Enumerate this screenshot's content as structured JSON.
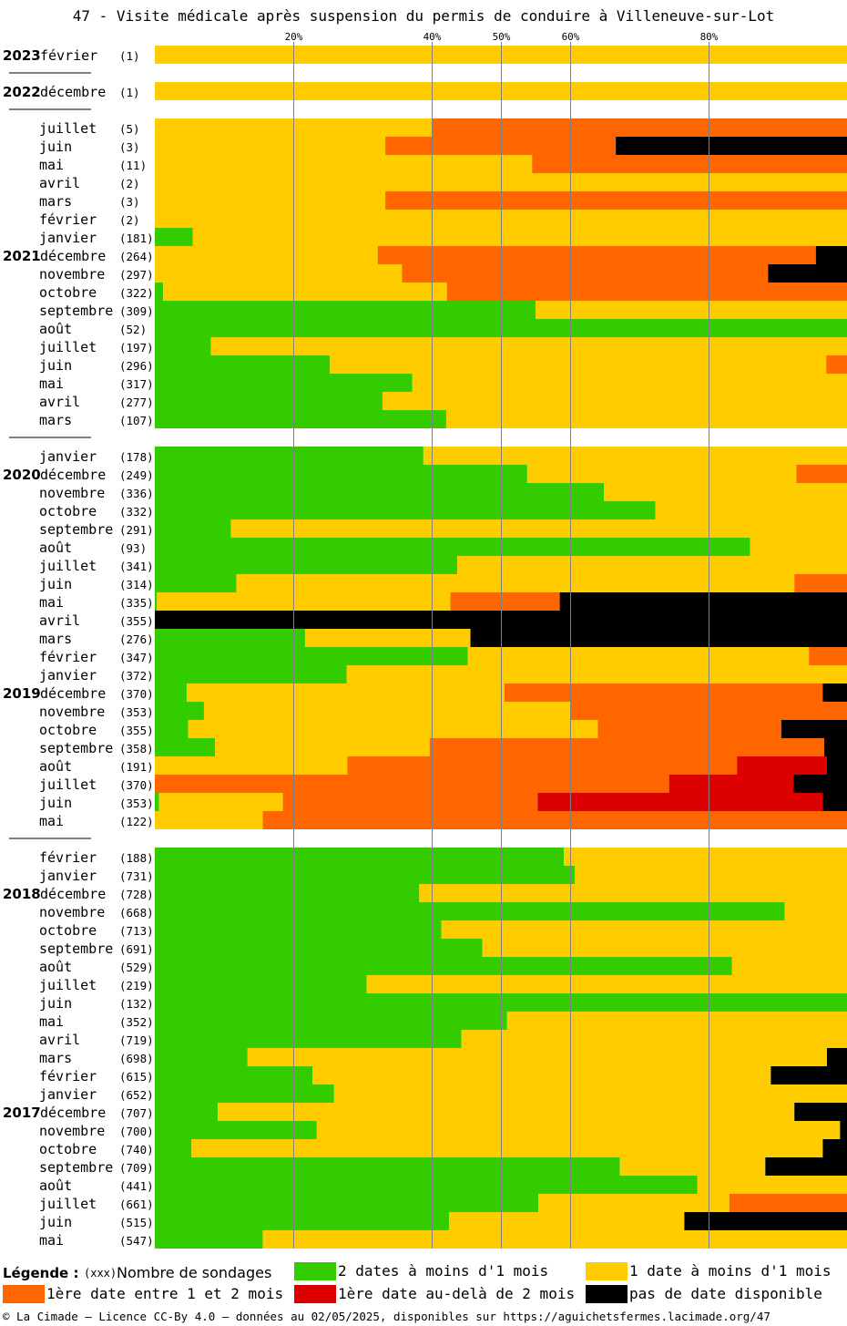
{
  "title": "47 - Visite médicale après suspension du permis de conduire à Villeneuve-sur-Lot",
  "colors": {
    "green": "#33cc00",
    "yellow": "#ffcc00",
    "orange": "#ff6600",
    "red": "#dd0000",
    "black": "#000000",
    "gridline": "#808080"
  },
  "legend": {
    "heading": "Légende :",
    "count_note": "(xxx)",
    "count_label": "Nombre de sondages",
    "items": [
      {
        "key": "green",
        "label": "2 dates à moins d'1 mois"
      },
      {
        "key": "yellow",
        "label": "1 date à moins d'1 mois"
      },
      {
        "key": "orange",
        "label": "1ère date entre 1 et 2 mois"
      },
      {
        "key": "red",
        "label": "1ère date au-delà de 2 mois"
      },
      {
        "key": "black",
        "label": "pas de date disponible"
      }
    ]
  },
  "footer": "© La Cimade — Licence CC-By 4.0 — données au 02/05/2025, disponibles sur https://aguichetsfermes.lacimade.org/47",
  "chart_data": {
    "type": "bar",
    "orientation": "horizontal",
    "stacked": "100%",
    "x_ticks": [
      20,
      40,
      50,
      60,
      80
    ],
    "x_tick_labels": [
      "20%",
      "40%",
      "50%",
      "60%",
      "80%"
    ],
    "xlim": [
      0,
      100
    ],
    "series_order": [
      "green",
      "yellow",
      "orange",
      "red",
      "black"
    ],
    "groups": [
      {
        "rows": [
          {
            "year": "2023",
            "month": "février",
            "count": "(1)",
            "green": 0,
            "yellow": 100,
            "orange": 0,
            "red": 0,
            "black": 0
          }
        ]
      },
      {
        "rows": [
          {
            "year": "2022",
            "month": "décembre",
            "count": "(1)",
            "green": 0,
            "yellow": 100,
            "orange": 0,
            "red": 0,
            "black": 0
          }
        ]
      },
      {
        "rows": [
          {
            "year": "",
            "month": "juillet",
            "count": "(5)",
            "green": 0,
            "yellow": 40,
            "orange": 60,
            "red": 0,
            "black": 0
          },
          {
            "year": "",
            "month": "juin",
            "count": "(3)",
            "green": 0,
            "yellow": 33.3,
            "orange": 33.3,
            "red": 0,
            "black": 33.4
          },
          {
            "year": "",
            "month": "mai",
            "count": "(11)",
            "green": 0,
            "yellow": 54.5,
            "orange": 45.5,
            "red": 0,
            "black": 0
          },
          {
            "year": "",
            "month": "avril",
            "count": "(2)",
            "green": 0,
            "yellow": 100,
            "orange": 0,
            "red": 0,
            "black": 0
          },
          {
            "year": "",
            "month": "mars",
            "count": "(3)",
            "green": 0,
            "yellow": 33.3,
            "orange": 66.7,
            "red": 0,
            "black": 0
          },
          {
            "year": "",
            "month": "février",
            "count": "(2)",
            "green": 0,
            "yellow": 100,
            "orange": 0,
            "red": 0,
            "black": 0
          },
          {
            "year": "",
            "month": "janvier",
            "count": "(181)",
            "green": 5.5,
            "yellow": 94.5,
            "orange": 0,
            "red": 0,
            "black": 0
          },
          {
            "year": "2021",
            "month": "décembre",
            "count": "(264)",
            "green": 0,
            "yellow": 32.2,
            "orange": 63.3,
            "red": 0,
            "black": 4.5
          },
          {
            "year": "",
            "month": "novembre",
            "count": "(297)",
            "green": 0,
            "yellow": 35.7,
            "orange": 52.9,
            "red": 0,
            "black": 11.4
          },
          {
            "year": "",
            "month": "octobre",
            "count": "(322)",
            "green": 1.2,
            "yellow": 41,
            "orange": 57.8,
            "red": 0,
            "black": 0
          },
          {
            "year": "",
            "month": "septembre",
            "count": "(309)",
            "green": 55,
            "yellow": 45,
            "orange": 0,
            "red": 0,
            "black": 0
          },
          {
            "year": "",
            "month": "août",
            "count": "(52)",
            "green": 100,
            "yellow": 0,
            "orange": 0,
            "red": 0,
            "black": 0
          },
          {
            "year": "",
            "month": "juillet",
            "count": "(197)",
            "green": 8.1,
            "yellow": 91.9,
            "orange": 0,
            "red": 0,
            "black": 0
          },
          {
            "year": "",
            "month": "juin",
            "count": "(296)",
            "green": 25.3,
            "yellow": 71.7,
            "orange": 3,
            "red": 0,
            "black": 0
          },
          {
            "year": "",
            "month": "mai",
            "count": "(317)",
            "green": 37.2,
            "yellow": 62.8,
            "orange": 0,
            "red": 0,
            "black": 0
          },
          {
            "year": "",
            "month": "avril",
            "count": "(277)",
            "green": 32.9,
            "yellow": 67.1,
            "orange": 0,
            "red": 0,
            "black": 0
          },
          {
            "year": "",
            "month": "mars",
            "count": "(107)",
            "green": 42.1,
            "yellow": 57.9,
            "orange": 0,
            "red": 0,
            "black": 0
          }
        ]
      },
      {
        "rows": [
          {
            "year": "",
            "month": "janvier",
            "count": "(178)",
            "green": 38.8,
            "yellow": 61.2,
            "orange": 0,
            "red": 0,
            "black": 0
          },
          {
            "year": "2020",
            "month": "décembre",
            "count": "(249)",
            "green": 53.8,
            "yellow": 38.9,
            "orange": 7.3,
            "red": 0,
            "black": 0
          },
          {
            "year": "",
            "month": "novembre",
            "count": "(336)",
            "green": 64.9,
            "yellow": 35.1,
            "orange": 0,
            "red": 0,
            "black": 0
          },
          {
            "year": "",
            "month": "octobre",
            "count": "(332)",
            "green": 72.3,
            "yellow": 27.7,
            "orange": 0,
            "red": 0,
            "black": 0
          },
          {
            "year": "",
            "month": "septembre",
            "count": "(291)",
            "green": 11,
            "yellow": 89,
            "orange": 0,
            "red": 0,
            "black": 0
          },
          {
            "year": "",
            "month": "août",
            "count": "(93)",
            "green": 86,
            "yellow": 14,
            "orange": 0,
            "red": 0,
            "black": 0
          },
          {
            "year": "",
            "month": "juillet",
            "count": "(341)",
            "green": 43.7,
            "yellow": 56.3,
            "orange": 0,
            "red": 0,
            "black": 0
          },
          {
            "year": "",
            "month": "juin",
            "count": "(314)",
            "green": 11.8,
            "yellow": 80.6,
            "orange": 7.6,
            "red": 0,
            "black": 0
          },
          {
            "year": "",
            "month": "mai",
            "count": "(335)",
            "green": 0.3,
            "yellow": 42.4,
            "orange": 15.8,
            "red": 0,
            "black": 41.5
          },
          {
            "year": "",
            "month": "avril",
            "count": "(355)",
            "green": 0,
            "yellow": 0,
            "orange": 0,
            "red": 0,
            "black": 100
          },
          {
            "year": "",
            "month": "mars",
            "count": "(276)",
            "green": 21.7,
            "yellow": 23.9,
            "orange": 0,
            "red": 0,
            "black": 54.4
          },
          {
            "year": "",
            "month": "février",
            "count": "(347)",
            "green": 45.2,
            "yellow": 49.3,
            "orange": 5.5,
            "red": 0,
            "black": 0
          },
          {
            "year": "",
            "month": "janvier",
            "count": "(372)",
            "green": 27.7,
            "yellow": 72.3,
            "orange": 0,
            "red": 0,
            "black": 0
          },
          {
            "year": "2019",
            "month": "décembre",
            "count": "(370)",
            "green": 4.6,
            "yellow": 45.9,
            "orange": 46,
            "red": 0,
            "black": 3.5
          },
          {
            "year": "",
            "month": "novembre",
            "count": "(353)",
            "green": 7.1,
            "yellow": 52.9,
            "orange": 40,
            "red": 0,
            "black": 0
          },
          {
            "year": "",
            "month": "octobre",
            "count": "(355)",
            "green": 4.8,
            "yellow": 59.2,
            "orange": 26.5,
            "red": 0,
            "black": 9.5
          },
          {
            "year": "",
            "month": "septembre",
            "count": "(358)",
            "green": 8.7,
            "yellow": 31,
            "orange": 57,
            "red": 0,
            "black": 3.3
          },
          {
            "year": "",
            "month": "août",
            "count": "(191)",
            "green": 0,
            "yellow": 27.8,
            "orange": 56.3,
            "red": 13,
            "black": 2.9
          },
          {
            "year": "",
            "month": "juillet",
            "count": "(370)",
            "green": 0,
            "yellow": 0,
            "orange": 74.3,
            "red": 18,
            "black": 7.7
          },
          {
            "year": "",
            "month": "juin",
            "count": "(353)",
            "green": 0.6,
            "yellow": 17.9,
            "orange": 36.8,
            "red": 41.2,
            "black": 3.5
          },
          {
            "year": "",
            "month": "mai",
            "count": "(122)",
            "green": 0,
            "yellow": 15.6,
            "orange": 84.4,
            "red": 0,
            "black": 0
          }
        ]
      },
      {
        "rows": [
          {
            "year": "",
            "month": "février",
            "count": "(188)",
            "green": 59.1,
            "yellow": 40.9,
            "orange": 0,
            "red": 0,
            "black": 0
          },
          {
            "year": "",
            "month": "janvier",
            "count": "(731)",
            "green": 60.7,
            "yellow": 39.3,
            "orange": 0,
            "red": 0,
            "black": 0
          },
          {
            "year": "2018",
            "month": "décembre",
            "count": "(728)",
            "green": 38.2,
            "yellow": 61.8,
            "orange": 0,
            "red": 0,
            "black": 0
          },
          {
            "year": "",
            "month": "novembre",
            "count": "(668)",
            "green": 91,
            "yellow": 9,
            "orange": 0,
            "red": 0,
            "black": 0
          },
          {
            "year": "",
            "month": "octobre",
            "count": "(713)",
            "green": 41.4,
            "yellow": 58.6,
            "orange": 0,
            "red": 0,
            "black": 0
          },
          {
            "year": "",
            "month": "septembre",
            "count": "(691)",
            "green": 47.3,
            "yellow": 52.7,
            "orange": 0,
            "red": 0,
            "black": 0
          },
          {
            "year": "",
            "month": "août",
            "count": "(529)",
            "green": 83.4,
            "yellow": 16.6,
            "orange": 0,
            "red": 0,
            "black": 0
          },
          {
            "year": "",
            "month": "juillet",
            "count": "(219)",
            "green": 30.6,
            "yellow": 69.4,
            "orange": 0,
            "red": 0,
            "black": 0
          },
          {
            "year": "",
            "month": "juin",
            "count": "(132)",
            "green": 100,
            "yellow": 0,
            "orange": 0,
            "red": 0,
            "black": 0
          },
          {
            "year": "",
            "month": "mai",
            "count": "(352)",
            "green": 50.9,
            "yellow": 49.1,
            "orange": 0,
            "red": 0,
            "black": 0
          },
          {
            "year": "",
            "month": "avril",
            "count": "(719)",
            "green": 44.3,
            "yellow": 55.7,
            "orange": 0,
            "red": 0,
            "black": 0
          },
          {
            "year": "",
            "month": "mars",
            "count": "(698)",
            "green": 13.4,
            "yellow": 83.7,
            "orange": 0,
            "red": 0,
            "black": 2.9
          },
          {
            "year": "",
            "month": "février",
            "count": "(615)",
            "green": 22.8,
            "yellow": 66.2,
            "orange": 0,
            "red": 0,
            "black": 11
          },
          {
            "year": "",
            "month": "janvier",
            "count": "(652)",
            "green": 25.9,
            "yellow": 74.1,
            "orange": 0,
            "red": 0,
            "black": 0
          },
          {
            "year": "2017",
            "month": "décembre",
            "count": "(707)",
            "green": 9.1,
            "yellow": 83.3,
            "orange": 0,
            "red": 0,
            "black": 7.6
          },
          {
            "year": "",
            "month": "novembre",
            "count": "(700)",
            "green": 23.4,
            "yellow": 75.6,
            "orange": 0,
            "red": 0,
            "black": 1
          },
          {
            "year": "",
            "month": "octobre",
            "count": "(740)",
            "green": 5.3,
            "yellow": 91.2,
            "orange": 0,
            "red": 0,
            "black": 3.5
          },
          {
            "year": "",
            "month": "septembre",
            "count": "(709)",
            "green": 67.2,
            "yellow": 21,
            "orange": 0,
            "red": 0,
            "black": 11.8
          },
          {
            "year": "",
            "month": "août",
            "count": "(441)",
            "green": 78.4,
            "yellow": 21.6,
            "orange": 0,
            "red": 0,
            "black": 0
          },
          {
            "year": "",
            "month": "juillet",
            "count": "(661)",
            "green": 55.4,
            "yellow": 27.6,
            "orange": 17,
            "red": 0,
            "black": 0
          },
          {
            "year": "",
            "month": "juin",
            "count": "(515)",
            "green": 42.5,
            "yellow": 34,
            "orange": 0,
            "red": 0,
            "black": 23.5
          },
          {
            "year": "",
            "month": "mai",
            "count": "(547)",
            "green": 15.6,
            "yellow": 84.4,
            "orange": 0,
            "red": 0,
            "black": 0
          }
        ]
      }
    ]
  }
}
